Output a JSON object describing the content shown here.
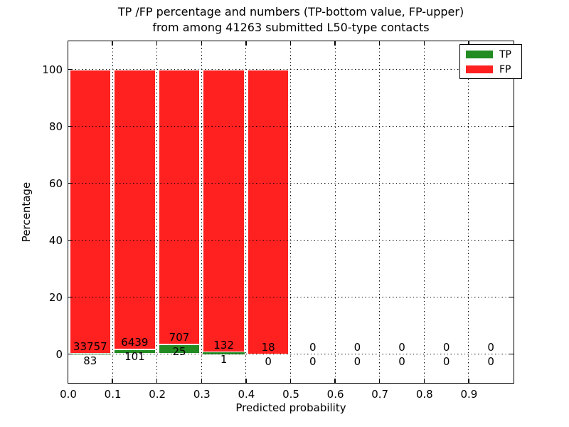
{
  "chart_data": {
    "type": "bar",
    "stacked": true,
    "title": "TP /FP percentage and numbers (TP-bottom value, FP-upper)",
    "subtitle": "from among 41263 submitted L50-type contacts",
    "xlabel": "Predicted probability",
    "ylabel": "Percentage",
    "xlim": [
      0.0,
      1.0
    ],
    "ylim": [
      -10,
      110
    ],
    "xtick_values": [
      0.0,
      0.1,
      0.2,
      0.3,
      0.4,
      0.5,
      0.6,
      0.7,
      0.8,
      0.9
    ],
    "xtick_labels": [
      "0.0",
      "0.1",
      "0.2",
      "0.3",
      "0.4",
      "0.5",
      "0.6",
      "0.7",
      "0.8",
      "0.9"
    ],
    "ytick_values": [
      0,
      20,
      40,
      60,
      80,
      100
    ],
    "ytick_labels": [
      "0",
      "20",
      "40",
      "60",
      "80",
      "100"
    ],
    "grid_style": "dotted",
    "grid_above_bars": true,
    "legend_position": "upper right",
    "bin_edges": [
      0.0,
      0.1,
      0.2,
      0.3,
      0.4,
      0.5,
      0.6,
      0.7,
      0.8,
      0.9,
      1.0
    ],
    "series": [
      {
        "name": "TP",
        "color": "#228B22",
        "counts": [
          83,
          101,
          25,
          1,
          0,
          0,
          0,
          0,
          0,
          0
        ],
        "pct": [
          0.25,
          1.54,
          3.42,
          0.75,
          0,
          0,
          0,
          0,
          0,
          0
        ]
      },
      {
        "name": "FP",
        "color": "#FF2020",
        "counts": [
          33757,
          6439,
          707,
          132,
          18,
          0,
          0,
          0,
          0,
          0
        ],
        "pct": [
          99.75,
          98.46,
          96.58,
          99.25,
          100,
          0,
          0,
          0,
          0,
          0
        ]
      }
    ],
    "bar_edge_color": "#FFFFFF",
    "text_color": "#000000",
    "total_contacts": 41263
  }
}
